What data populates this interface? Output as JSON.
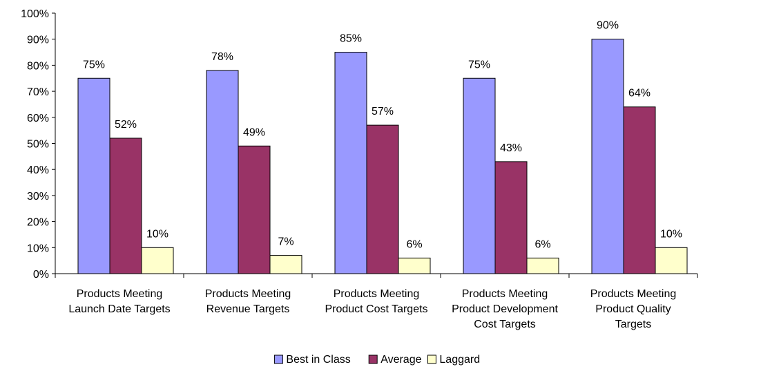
{
  "chart_data": {
    "type": "bar",
    "categories": [
      [
        "Products Meeting",
        "Launch Date Targets"
      ],
      [
        "Products Meeting",
        "Revenue Targets"
      ],
      [
        "Products Meeting",
        "Product Cost Targets"
      ],
      [
        "Products Meeting",
        "Product Development",
        "Cost Targets"
      ],
      [
        "Products Meeting",
        "Product Quality",
        "Targets"
      ]
    ],
    "series": [
      {
        "name": "Best in Class",
        "color": "#9999ff",
        "values": [
          75,
          78,
          85,
          75,
          90
        ]
      },
      {
        "name": "Average",
        "color": "#993366",
        "values": [
          52,
          49,
          57,
          43,
          64
        ]
      },
      {
        "name": "Laggard",
        "color": "#ffffcc",
        "values": [
          10,
          7,
          6,
          6,
          10
        ]
      }
    ],
    "ylim": [
      0,
      100
    ],
    "ytick_step": 10,
    "value_suffix": "%",
    "grid": false,
    "legend_position": "bottom-center",
    "title": "",
    "xlabel": "",
    "ylabel": ""
  }
}
